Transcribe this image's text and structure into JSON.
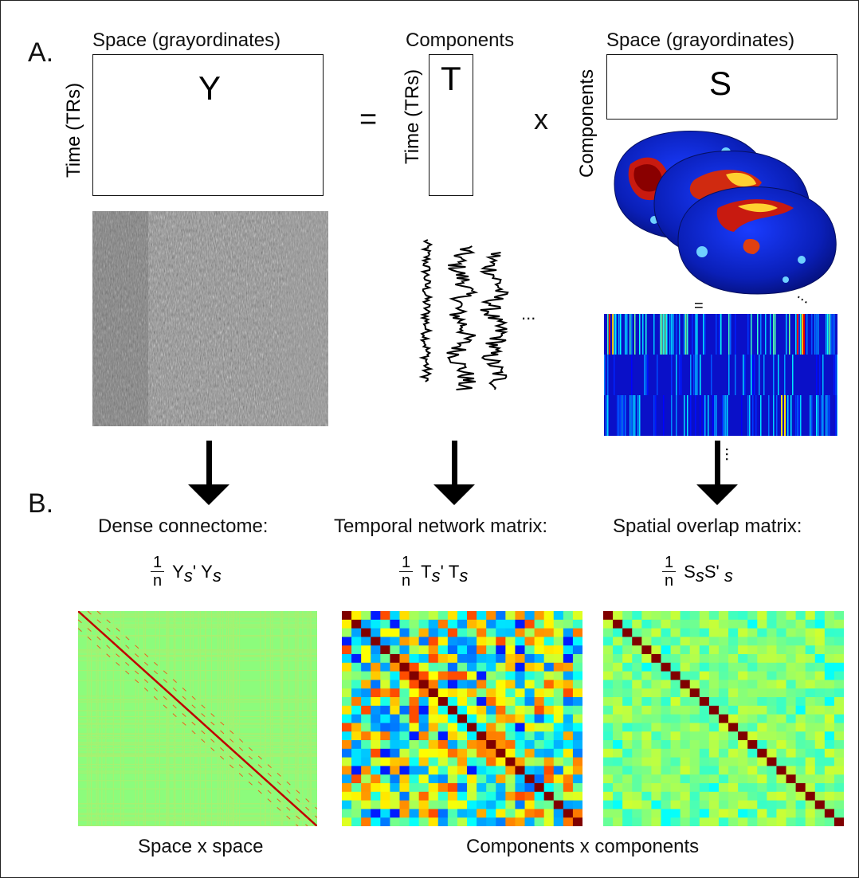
{
  "panel_a": {
    "label": "A.",
    "y_matrix": {
      "letter": "Y",
      "top_label": "Space (grayordinates)",
      "side_label": "Time (TRs)"
    },
    "equals": "=",
    "t_matrix": {
      "letter": "T",
      "top_label": "Components",
      "side_label": "Time (TRs)"
    },
    "times": "x",
    "s_matrix": {
      "letter": "S",
      "top_label": "Space (grayordinates)",
      "side_label": "Components"
    },
    "timeseries_ellipsis": "...",
    "brain_equals": "=",
    "brain_ellipsis": "...",
    "stripe_ellipsis": "..."
  },
  "panel_b": {
    "label": "B.",
    "columns": [
      {
        "title": "Dense connectome:",
        "formula": {
          "num": "1",
          "den": "n",
          "a": "Y",
          "a_sub": "s",
          "a_prime": "'",
          "b": "Y",
          "b_sub": "s"
        },
        "caption": "Space x space"
      },
      {
        "title": "Temporal network matrix:",
        "formula": {
          "num": "1",
          "den": "n",
          "a": "T",
          "a_sub": "s",
          "a_prime": "'",
          "b": "T",
          "b_sub": "s"
        },
        "caption": "Components x components"
      },
      {
        "title": "Spatial overlap matrix:",
        "formula": {
          "num": "1",
          "den": "n",
          "a": "S ",
          "a_sub": "s",
          "a_prime": "",
          "b": "S'",
          "b_sub": "s"
        }
      }
    ]
  },
  "colors": {
    "jet_dark_red": "#800000",
    "jet_green": "#80ff80",
    "jet_dark_blue": "#00008f",
    "gray_noise": "#8a8a8a"
  }
}
